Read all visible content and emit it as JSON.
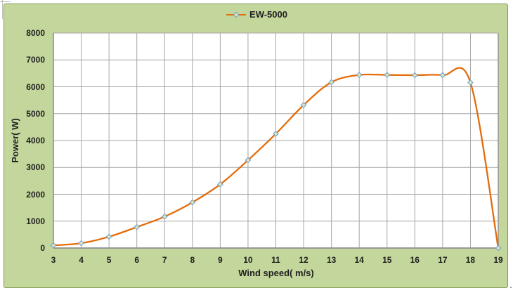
{
  "legend": {
    "label": "EW-5000",
    "position": "top"
  },
  "colors": {
    "chart_background": "#c3d69b",
    "chart_border": "#7e9a50",
    "plot_background": "#ffffff",
    "gridline": "#a6a6a6",
    "axis_line": "#8f8f8f",
    "text": "#1f1f1f",
    "series_line": "#e46c0a",
    "marker_fill": "#d9e5c1",
    "marker_stroke": "#7ba0c8"
  },
  "chart_data": {
    "type": "line",
    "title": "",
    "xlabel": "Wind speed( m/s)",
    "ylabel": "Power( W)",
    "xlim": [
      3,
      19
    ],
    "ylim": [
      0,
      8000
    ],
    "x_ticks": [
      3,
      4,
      5,
      6,
      7,
      8,
      9,
      10,
      11,
      12,
      13,
      14,
      15,
      16,
      17,
      18,
      19
    ],
    "y_ticks": [
      0,
      1000,
      2000,
      3000,
      4000,
      5000,
      6000,
      7000,
      8000
    ],
    "grid": true,
    "line_smooth": true,
    "legend_position": "top",
    "series": [
      {
        "name": "EW-5000",
        "marker": "diamond",
        "x": [
          3,
          4,
          5,
          6,
          7,
          8,
          9,
          10,
          11,
          12,
          13,
          14,
          15,
          16,
          17,
          18,
          19
        ],
        "y": [
          100,
          180,
          420,
          780,
          1170,
          1700,
          2370,
          3270,
          4250,
          5320,
          6170,
          6440,
          6440,
          6430,
          6430,
          6160,
          0
        ]
      }
    ]
  }
}
